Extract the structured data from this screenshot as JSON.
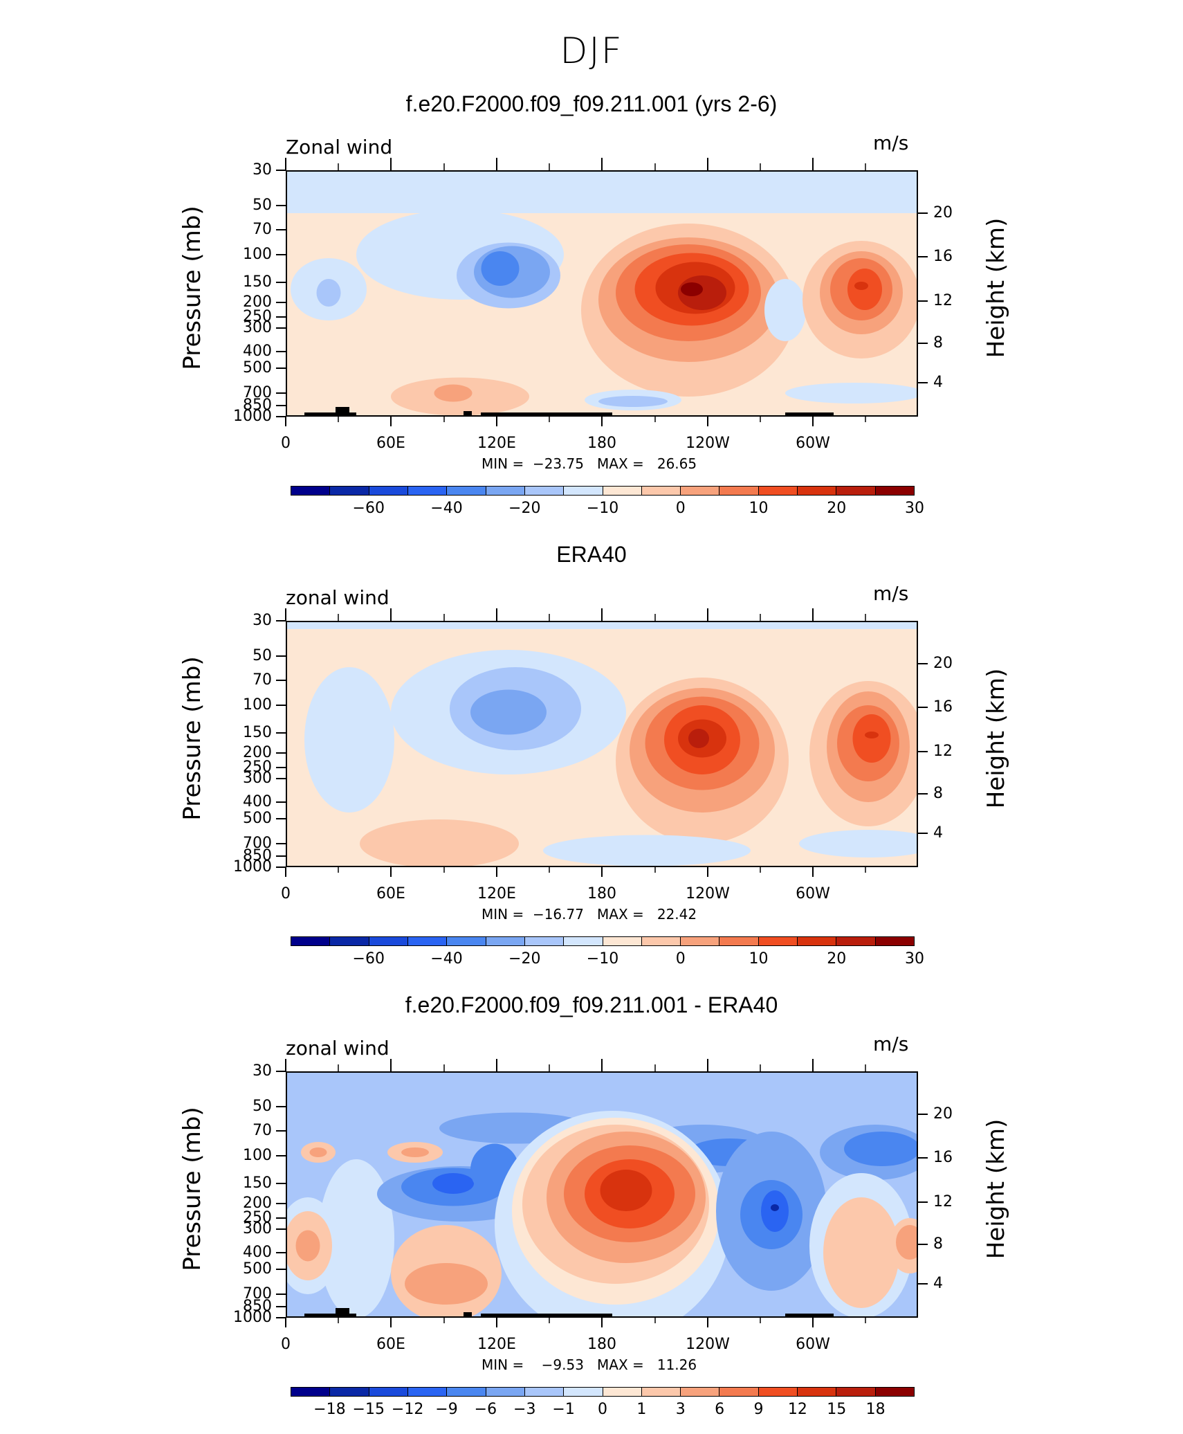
{
  "figure": {
    "title": "DJF"
  },
  "panels": [
    {
      "title": "f.e20.F2000.f09_f09.211.001 (yrs 2-6)",
      "variable_label": "Zonal wind",
      "units": "m/s",
      "ylabel_left": "Pressure (mb)",
      "ylabel_right": "Height (km)",
      "min_max_text": "MIN =  −23.75   MAX =   26.65",
      "colorbar_labels": [
        "−60",
        "−40",
        "−20",
        "−10",
        "0",
        "10",
        "20",
        "30"
      ]
    },
    {
      "title": "ERA40",
      "variable_label": "zonal wind",
      "units": "m/s",
      "ylabel_left": "Pressure (mb)",
      "ylabel_right": "Height (km)",
      "min_max_text": "MIN =  −16.77   MAX =   22.42",
      "colorbar_labels": [
        "−60",
        "−40",
        "−20",
        "−10",
        "0",
        "10",
        "20",
        "30"
      ]
    },
    {
      "title": "f.e20.F2000.f09_f09.211.001 - ERA40",
      "variable_label": "zonal wind",
      "units": "m/s",
      "ylabel_left": "Pressure (mb)",
      "ylabel_right": "Height (km)",
      "min_max_text": "MIN =    −9.53   MAX =   11.26",
      "colorbar_labels": [
        "−18",
        "−15",
        "−12",
        "−9",
        "−6",
        "−3",
        "−1",
        "0",
        "1",
        "3",
        "6",
        "9",
        "12",
        "15",
        "18"
      ]
    }
  ],
  "axes": {
    "pressure_ticks": [
      "30",
      "50",
      "70",
      "100",
      "150",
      "200",
      "250",
      "300",
      "400",
      "500",
      "700",
      "850",
      "1000"
    ],
    "height_ticks": [
      "20",
      "16",
      "12",
      "8",
      "4"
    ],
    "longitude_ticks": [
      "0",
      "60E",
      "120E",
      "180",
      "120W",
      "60W"
    ]
  },
  "colors": {
    "main_colorbar": [
      "#00008b",
      "#0a28a6",
      "#1a4adb",
      "#2a64f2",
      "#4a86f0",
      "#7aa6f2",
      "#a9c6fa",
      "#d3e6fd",
      "#fde7d4",
      "#fcc8ab",
      "#f7a27c",
      "#f37a4f",
      "#f04e22",
      "#d8330e",
      "#b91e0c",
      "#8b0000"
    ],
    "diff_colorbar": [
      "#00008b",
      "#0a28a6",
      "#1a4adb",
      "#2a64f2",
      "#4a86f0",
      "#7aa6f2",
      "#a9c6fa",
      "#d3e6fd",
      "#fde7d4",
      "#fcc8ab",
      "#f7a27c",
      "#f37a4f",
      "#f04e22",
      "#d8330e",
      "#b91e0c",
      "#8b0000"
    ]
  },
  "chart_data": [
    {
      "type": "heatmap",
      "title": "f.e20.F2000.f09_f09.211.001 (yrs 2-6)",
      "subtitle": "Zonal wind",
      "xlabel": "",
      "ylabel": "Pressure (mb)",
      "y2label": "Height (km)",
      "units": "m/s",
      "x_ticks": [
        "0",
        "60E",
        "120E",
        "180",
        "120W",
        "60W"
      ],
      "y_ticks_pressure": [
        30,
        50,
        70,
        100,
        150,
        200,
        250,
        300,
        400,
        500,
        700,
        850,
        1000
      ],
      "y_ticks_height_km": [
        20,
        16,
        12,
        8,
        4
      ],
      "contour_levels": [
        -60,
        -40,
        -20,
        -10,
        0,
        10,
        20,
        30
      ],
      "min": -23.75,
      "max": 26.65,
      "features": [
        {
          "kind": "easterly minimum",
          "lon_deg": 125,
          "pressure_mb": 130,
          "value": -23.75
        },
        {
          "kind": "westerly jet maximum",
          "lon_deg": 230,
          "pressure_mb": 160,
          "value": 26.65
        },
        {
          "kind": "secondary westerly maximum",
          "lon_deg": 325,
          "pressure_mb": 150,
          "value": 17
        },
        {
          "kind": "weak easterlies",
          "lon_deg": 20,
          "pressure_mb": 160,
          "value": -6
        }
      ]
    },
    {
      "type": "heatmap",
      "title": "ERA40",
      "subtitle": "zonal wind",
      "xlabel": "",
      "ylabel": "Pressure (mb)",
      "y2label": "Height (km)",
      "units": "m/s",
      "x_ticks": [
        "0",
        "60E",
        "120E",
        "180",
        "120W",
        "60W"
      ],
      "y_ticks_pressure": [
        30,
        50,
        70,
        100,
        150,
        200,
        250,
        300,
        400,
        500,
        700,
        850,
        1000
      ],
      "y_ticks_height_km": [
        20,
        16,
        12,
        8,
        4
      ],
      "contour_levels": [
        -60,
        -40,
        -20,
        -10,
        0,
        10,
        20,
        30
      ],
      "min": -16.77,
      "max": 22.42,
      "features": [
        {
          "kind": "easterly minimum",
          "lon_deg": 135,
          "pressure_mb": 110,
          "value": -16.77
        },
        {
          "kind": "westerly jet maximum",
          "lon_deg": 245,
          "pressure_mb": 160,
          "value": 22.42
        },
        {
          "kind": "secondary westerly maximum",
          "lon_deg": 330,
          "pressure_mb": 160,
          "value": 18
        }
      ]
    },
    {
      "type": "heatmap",
      "title": "f.e20.F2000.f09_f09.211.001 - ERA40",
      "subtitle": "zonal wind",
      "xlabel": "",
      "ylabel": "Pressure (mb)",
      "y2label": "Height (km)",
      "units": "m/s",
      "x_ticks": [
        "0",
        "60E",
        "120E",
        "180",
        "120W",
        "60W"
      ],
      "y_ticks_pressure": [
        30,
        50,
        70,
        100,
        150,
        200,
        250,
        300,
        400,
        500,
        700,
        850,
        1000
      ],
      "y_ticks_height_km": [
        20,
        16,
        12,
        8,
        4
      ],
      "contour_levels": [
        -18,
        -15,
        -12,
        -9,
        -6,
        -3,
        -1,
        0,
        1,
        3,
        6,
        9,
        12,
        15,
        18
      ],
      "min": -9.53,
      "max": 11.26,
      "features": [
        {
          "kind": "positive difference maximum",
          "lon_deg": 190,
          "pressure_mb": 180,
          "value": 11.26
        },
        {
          "kind": "negative difference minimum",
          "lon_deg": 280,
          "pressure_mb": 200,
          "value": -9.53
        },
        {
          "kind": "negative band",
          "lon_deg": 120,
          "pressure_mb": 140,
          "value": -9
        }
      ]
    }
  ]
}
